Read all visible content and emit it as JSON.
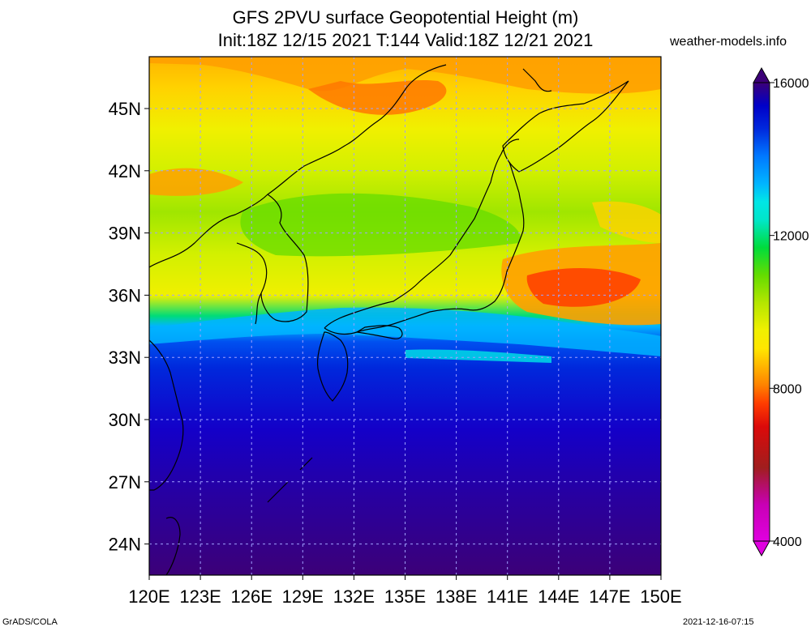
{
  "title": {
    "line1": "GFS 2PVU surface Geopotential Height (m)",
    "line2": "Init:18Z 12/15 2021 T:144 Valid:18Z 12/21 2021",
    "site": "weather-models.info"
  },
  "map": {
    "projection": "lat-lon",
    "lon_range": [
      120,
      150
    ],
    "lat_range": [
      22.5,
      47.5
    ],
    "lon_ticks": [
      "120E",
      "123E",
      "126E",
      "129E",
      "132E",
      "135E",
      "138E",
      "141E",
      "144E",
      "147E",
      "150E"
    ],
    "lat_ticks": [
      "45N",
      "42N",
      "39N",
      "36N",
      "33N",
      "30N",
      "27N",
      "24N"
    ],
    "gridlines": true,
    "field": "2PVU surface geopotential height",
    "units": "m"
  },
  "colorbar": {
    "labels": [
      "16000",
      "12000",
      "8000",
      "4000"
    ],
    "range": [
      4000,
      16000
    ],
    "levels": [
      4000,
      4500,
      5000,
      5500,
      6000,
      6500,
      7000,
      7500,
      8000,
      8500,
      9000,
      9500,
      10000,
      10500,
      11000,
      11500,
      12000,
      12500,
      13000,
      13500,
      14000,
      14500,
      15000,
      15500,
      16000
    ],
    "colors": [
      "#e000e0",
      "#c800b4",
      "#b40064",
      "#a01e1e",
      "#b41414",
      "#dc0a0a",
      "#f01400",
      "#ff3c00",
      "#ff6e00",
      "#ffa000",
      "#ffd200",
      "#f0f000",
      "#d2f000",
      "#a0e600",
      "#64dc00",
      "#00dc3c",
      "#00e6a0",
      "#00e6e6",
      "#00b4ff",
      "#0078ff",
      "#0050f0",
      "#0028dc",
      "#0000c8",
      "#1400a0",
      "#3c0078"
    ]
  },
  "footer": {
    "left": "GrADS/COLA",
    "right": "2021-12-16-07:15"
  }
}
